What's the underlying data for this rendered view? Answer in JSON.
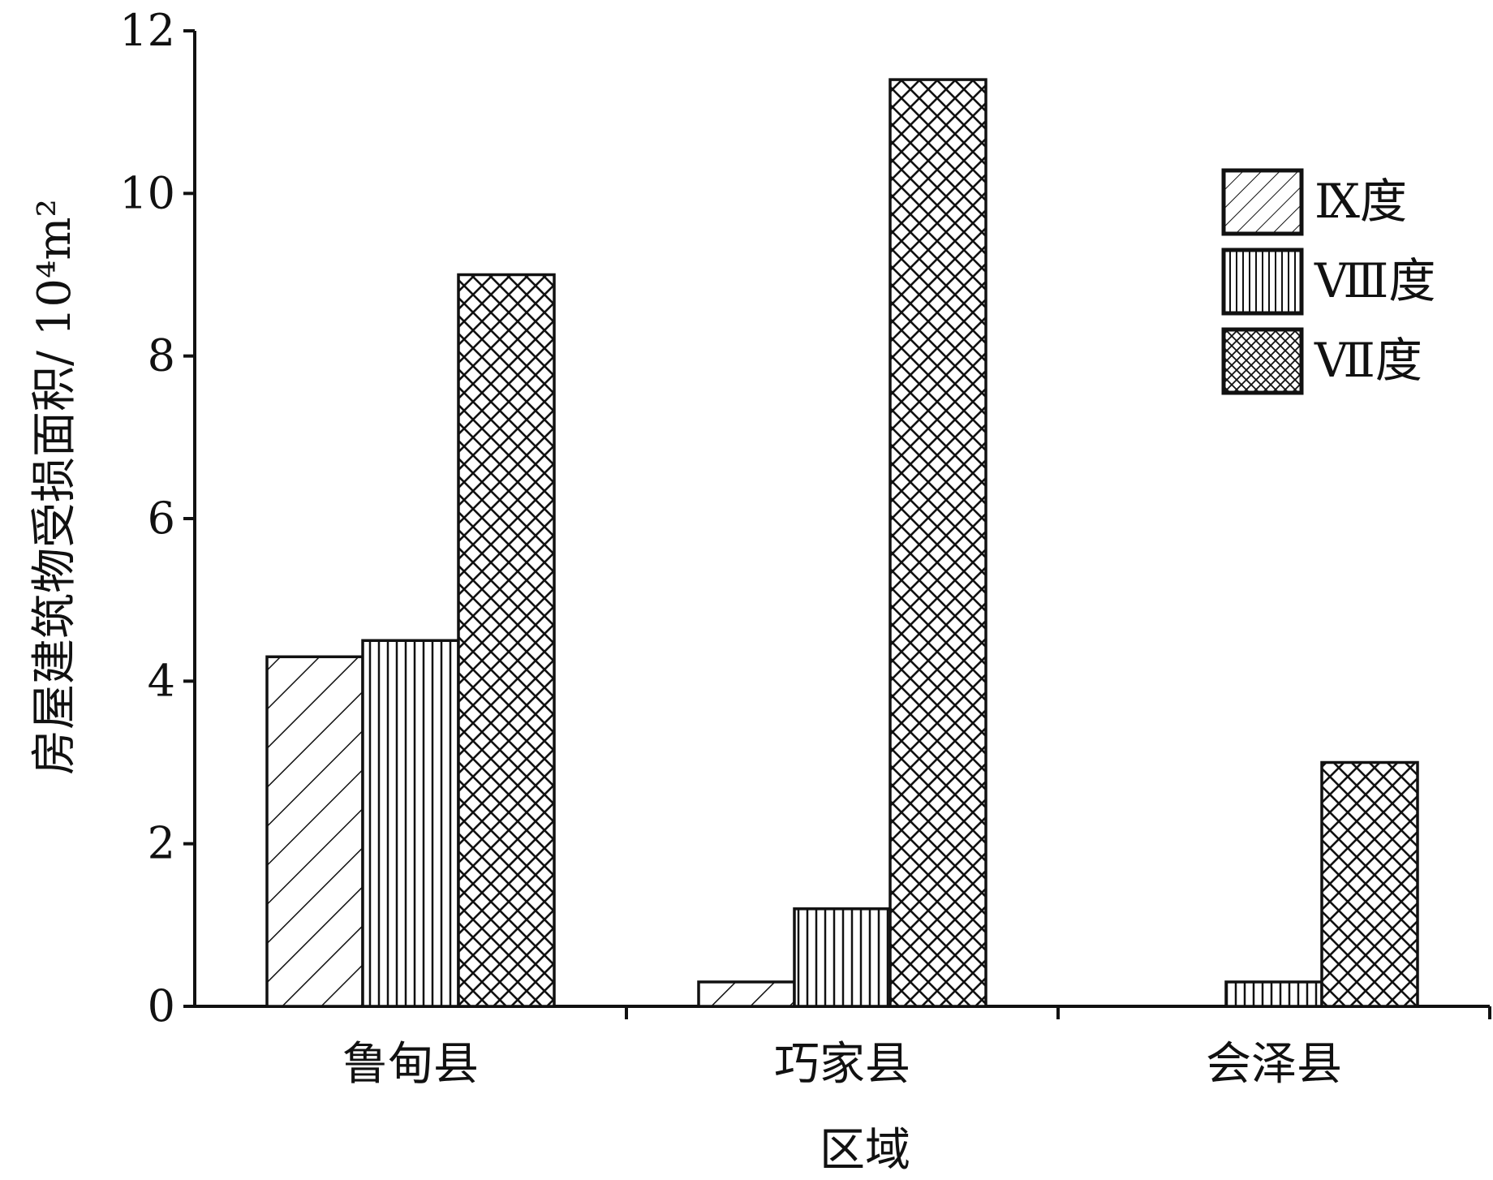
{
  "chart_data": {
    "type": "bar",
    "categories": [
      "鲁甸县",
      "巧家县",
      "会泽县"
    ],
    "series": [
      {
        "name": "Ⅸ度",
        "values": [
          4.3,
          0.3,
          0
        ],
        "pattern": "diagonal"
      },
      {
        "name": "Ⅷ度",
        "values": [
          4.5,
          1.2,
          0.3
        ],
        "pattern": "vertical"
      },
      {
        "name": "Ⅶ度",
        "values": [
          9.0,
          11.4,
          3.0
        ],
        "pattern": "crosshatch"
      }
    ],
    "xlabel": "区域",
    "ylabel": "房屋建筑物受损面积/ 10⁴m²",
    "ylim": [
      0,
      12
    ],
    "yticks": [
      0,
      2,
      4,
      6,
      8,
      10,
      12
    ],
    "legend_position": "top-right",
    "grid": false,
    "colors": {
      "stroke": "#111111",
      "fill": "#ffffff"
    }
  }
}
